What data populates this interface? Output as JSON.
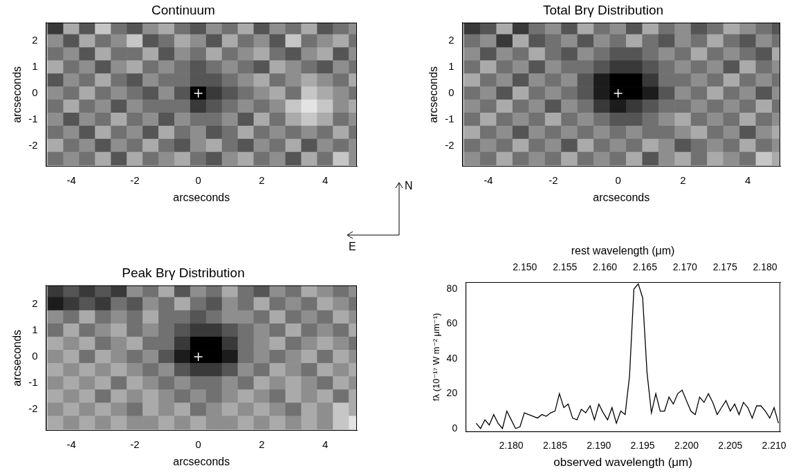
{
  "chart_data": [
    {
      "type": "heatmap",
      "title": "Continuum",
      "xlabel": "arcseconds",
      "ylabel": "arcseconds",
      "xlim": [
        -4.8,
        5
      ],
      "xticks": [
        -4,
        -2,
        0,
        2,
        4
      ],
      "ylim": [
        -2.8,
        2.7
      ],
      "yticks": [
        -2,
        -1,
        0,
        1,
        2
      ],
      "grid": false,
      "x": [
        -4.5,
        -4,
        -3.5,
        -3,
        -2.5,
        -2,
        -1.5,
        -1,
        -0.5,
        0,
        0.5,
        1,
        1.5,
        2,
        2.5,
        3,
        3.5,
        4,
        4.5,
        5
      ],
      "y": [
        2.5,
        2,
        1.5,
        1,
        0.5,
        0,
        -0.5,
        -1,
        -1.5,
        -2,
        -2.5
      ],
      "zlim": [
        0,
        9
      ],
      "cells": [
        [
          7,
          3,
          6,
          2,
          5,
          6,
          4,
          3,
          5,
          6,
          4,
          5,
          3,
          6,
          4,
          5,
          3,
          6,
          5,
          4
        ],
        [
          4,
          6,
          3,
          5,
          4,
          2,
          6,
          5,
          3,
          4,
          6,
          3,
          5,
          4,
          6,
          2,
          5,
          4,
          3,
          5
        ],
        [
          5,
          4,
          6,
          3,
          5,
          5,
          3,
          6,
          4,
          5,
          3,
          5,
          4,
          3,
          5,
          6,
          4,
          3,
          6,
          4
        ],
        [
          3,
          5,
          4,
          6,
          4,
          3,
          5,
          4,
          5,
          6,
          5,
          4,
          5,
          6,
          3,
          4,
          5,
          6,
          4,
          5
        ],
        [
          6,
          4,
          5,
          3,
          5,
          6,
          4,
          5,
          5,
          6,
          6,
          5,
          4,
          3,
          5,
          4,
          3,
          4,
          5,
          3
        ],
        [
          4,
          5,
          3,
          5,
          4,
          5,
          6,
          4,
          6,
          9,
          7,
          6,
          5,
          4,
          3,
          5,
          2,
          3,
          4,
          5
        ],
        [
          5,
          3,
          5,
          4,
          6,
          4,
          5,
          5,
          5,
          7,
          6,
          5,
          4,
          5,
          4,
          2,
          1,
          2,
          4,
          3
        ],
        [
          4,
          6,
          4,
          5,
          3,
          5,
          4,
          6,
          4,
          5,
          5,
          4,
          6,
          3,
          5,
          3,
          2,
          3,
          5,
          4
        ],
        [
          5,
          4,
          6,
          3,
          5,
          4,
          6,
          3,
          5,
          4,
          6,
          5,
          3,
          5,
          4,
          5,
          4,
          5,
          3,
          5
        ],
        [
          3,
          5,
          4,
          6,
          4,
          5,
          3,
          5,
          6,
          4,
          3,
          5,
          6,
          4,
          5,
          3,
          6,
          4,
          5,
          4
        ],
        [
          5,
          4,
          5,
          3,
          6,
          3,
          5,
          4,
          3,
          5,
          6,
          4,
          3,
          5,
          4,
          6,
          3,
          5,
          2,
          4
        ]
      ],
      "points": {
        "x": [
          0
        ],
        "y": [
          0
        ],
        "marker": "cross",
        "color": "#ffffff"
      }
    },
    {
      "type": "heatmap",
      "title": "Total Brγ Distribution",
      "xlabel": "arcseconds",
      "ylabel": "arcseconds",
      "xlim": [
        -4.8,
        5
      ],
      "xticks": [
        -4,
        -2,
        0,
        2,
        4
      ],
      "ylim": [
        -2.8,
        2.7
      ],
      "yticks": [
        -2,
        -1,
        0,
        1,
        2
      ],
      "grid": false,
      "x": [
        -4.5,
        -4,
        -3.5,
        -3,
        -2.5,
        -2,
        -1.5,
        -1,
        -0.5,
        0,
        0.5,
        1,
        1.5,
        2,
        2.5,
        3,
        3.5,
        4,
        4.5,
        5
      ],
      "y": [
        2.5,
        2,
        1.5,
        1,
        0.5,
        0,
        -0.5,
        -1,
        -1.5,
        -2,
        -2.5
      ],
      "zlim": [
        0,
        9
      ],
      "cells": [
        [
          7,
          6,
          3,
          7,
          5,
          4,
          6,
          3,
          5,
          4,
          6,
          3,
          5,
          4,
          6,
          5,
          3,
          4,
          5,
          6
        ],
        [
          5,
          4,
          7,
          3,
          6,
          5,
          4,
          6,
          4,
          5,
          3,
          5,
          6,
          4,
          5,
          3,
          5,
          6,
          4,
          5
        ],
        [
          4,
          6,
          4,
          5,
          3,
          5,
          6,
          4,
          5,
          6,
          6,
          5,
          4,
          5,
          3,
          5,
          4,
          5,
          6,
          3
        ],
        [
          5,
          3,
          5,
          4,
          6,
          4,
          5,
          5,
          6,
          7,
          7,
          6,
          5,
          4,
          5,
          4,
          6,
          3,
          5,
          4
        ],
        [
          3,
          5,
          4,
          6,
          4,
          5,
          4,
          6,
          8,
          9,
          9,
          7,
          5,
          5,
          4,
          5,
          3,
          5,
          4,
          5
        ],
        [
          5,
          4,
          6,
          3,
          5,
          4,
          5,
          6,
          8,
          9,
          9,
          8,
          6,
          4,
          5,
          3,
          5,
          4,
          6,
          4
        ],
        [
          4,
          5,
          3,
          5,
          4,
          6,
          4,
          5,
          7,
          8,
          7,
          6,
          5,
          5,
          4,
          5,
          4,
          5,
          3,
          5
        ],
        [
          5,
          3,
          5,
          4,
          5,
          3,
          5,
          4,
          5,
          6,
          6,
          5,
          4,
          3,
          5,
          4,
          5,
          3,
          5,
          4
        ],
        [
          3,
          5,
          4,
          6,
          4,
          5,
          4,
          5,
          4,
          5,
          4,
          5,
          5,
          4,
          3,
          5,
          4,
          6,
          4,
          3
        ],
        [
          5,
          4,
          5,
          3,
          5,
          4,
          6,
          3,
          5,
          4,
          5,
          3,
          4,
          6,
          5,
          4,
          5,
          3,
          5,
          4
        ],
        [
          4,
          5,
          3,
          5,
          4,
          5,
          3,
          5,
          4,
          5,
          3,
          6,
          4,
          3,
          5,
          3,
          4,
          5,
          2,
          3
        ]
      ],
      "points": {
        "x": [
          0
        ],
        "y": [
          0
        ],
        "marker": "cross",
        "color": "#ffffff"
      }
    },
    {
      "type": "heatmap",
      "title": "Peak Brγ Distribution",
      "xlabel": "arcseconds",
      "ylabel": "arcseconds",
      "xlim": [
        -4.8,
        5
      ],
      "xticks": [
        -4,
        -2,
        0,
        2,
        4
      ],
      "ylim": [
        -2.8,
        2.7
      ],
      "yticks": [
        -2,
        -1,
        0,
        1,
        2
      ],
      "grid": false,
      "x": [
        -4.5,
        -4,
        -3.5,
        -3,
        -2.5,
        -2,
        -1.5,
        -1,
        -0.5,
        0,
        0.5,
        1,
        1.5,
        2,
        2.5,
        3,
        3.5,
        4,
        4.5,
        5
      ],
      "y": [
        2.5,
        2,
        1.5,
        1,
        0.5,
        0,
        -0.5,
        -1,
        -1.5,
        -2,
        -2.5
      ],
      "zlim": [
        0,
        9
      ],
      "cells": [
        [
          7,
          6,
          7,
          6,
          7,
          4,
          5,
          3,
          6,
          4,
          5,
          3,
          5,
          6,
          4,
          5,
          3,
          4,
          5,
          4
        ],
        [
          8,
          7,
          6,
          7,
          5,
          6,
          4,
          5,
          3,
          5,
          6,
          4,
          5,
          3,
          5,
          4,
          5,
          3,
          4,
          5
        ],
        [
          4,
          5,
          3,
          5,
          4,
          5,
          3,
          5,
          5,
          6,
          5,
          4,
          4,
          5,
          3,
          5,
          4,
          5,
          3,
          4
        ],
        [
          5,
          3,
          5,
          4,
          3,
          5,
          4,
          5,
          6,
          7,
          7,
          6,
          5,
          4,
          5,
          3,
          5,
          4,
          5,
          3
        ],
        [
          3,
          4,
          3,
          5,
          4,
          3,
          5,
          5,
          7,
          9,
          9,
          7,
          5,
          4,
          3,
          5,
          4,
          3,
          4,
          5
        ],
        [
          4,
          3,
          5,
          3,
          4,
          5,
          4,
          6,
          8,
          9,
          9,
          8,
          5,
          4,
          5,
          4,
          3,
          5,
          3,
          4
        ],
        [
          3,
          4,
          3,
          4,
          3,
          4,
          5,
          4,
          6,
          7,
          7,
          6,
          4,
          5,
          3,
          4,
          5,
          3,
          4,
          3
        ],
        [
          4,
          3,
          4,
          3,
          5,
          3,
          4,
          5,
          4,
          5,
          5,
          4,
          5,
          3,
          4,
          3,
          4,
          5,
          3,
          4
        ],
        [
          3,
          4,
          3,
          5,
          3,
          4,
          3,
          4,
          5,
          4,
          5,
          4,
          3,
          4,
          5,
          3,
          4,
          3,
          5,
          3
        ],
        [
          4,
          3,
          4,
          3,
          4,
          5,
          3,
          4,
          3,
          5,
          4,
          3,
          4,
          3,
          4,
          5,
          3,
          4,
          2,
          3
        ],
        [
          3,
          4,
          3,
          4,
          3,
          4,
          4,
          3,
          4,
          3,
          4,
          4,
          3,
          4,
          3,
          4,
          3,
          4,
          2,
          1
        ]
      ],
      "points": {
        "x": [
          0
        ],
        "y": [
          0
        ],
        "marker": "cross",
        "color": "#ffffff"
      }
    },
    {
      "type": "line",
      "xlabel": "observed wavelength (μm)",
      "x2label": "rest wavelength (μm)",
      "ylabel": "fλ (10⁻¹⁷ W m⁻² μm⁻¹)",
      "color": "#000000",
      "grid": false,
      "xlim": [
        2.1748,
        2.2107
      ],
      "xticks": [
        {
          "value": 2.18,
          "label": "2.180"
        },
        {
          "value": 2.185,
          "label": "2.185"
        },
        {
          "value": 2.19,
          "label": "2.190"
        },
        {
          "value": 2.195,
          "label": "2.195"
        },
        {
          "value": 2.2,
          "label": "2.200"
        },
        {
          "value": 2.205,
          "label": "2.205"
        },
        {
          "value": 2.21,
          "label": "2.210"
        }
      ],
      "x2lim": [
        2.1426,
        2.1819
      ],
      "x2ticks": [
        {
          "value": 2.15,
          "label": "2.150"
        },
        {
          "value": 2.155,
          "label": "2.155"
        },
        {
          "value": 2.16,
          "label": "2.160"
        },
        {
          "value": 2.165,
          "label": "2.165"
        },
        {
          "value": 2.17,
          "label": "2.170"
        },
        {
          "value": 2.175,
          "label": "2.175"
        },
        {
          "value": 2.18,
          "label": "2.180"
        }
      ],
      "ylim": [
        -2,
        84
      ],
      "yticks": [
        0,
        20,
        40,
        60,
        80
      ],
      "x": [
        2.176,
        2.1765,
        2.177,
        2.1775,
        2.178,
        2.1785,
        2.179,
        2.1795,
        2.18,
        2.1805,
        2.181,
        2.1815,
        2.182,
        2.1825,
        2.183,
        2.1835,
        2.184,
        2.1845,
        2.185,
        2.1855,
        2.186,
        2.1865,
        2.187,
        2.1875,
        2.188,
        2.1885,
        2.189,
        2.1895,
        2.19,
        2.1905,
        2.191,
        2.1915,
        2.192,
        2.1925,
        2.193,
        2.1935,
        2.194,
        2.1945,
        2.195,
        2.1955,
        2.196,
        2.1965,
        2.197,
        2.1975,
        2.198,
        2.1985,
        2.199,
        2.1995,
        2.2,
        2.2005,
        2.201,
        2.2015,
        2.202,
        2.2025,
        2.203,
        2.2035,
        2.204,
        2.2045,
        2.205,
        2.2055,
        2.206,
        2.2065,
        2.207,
        2.2075,
        2.208,
        2.2085,
        2.209,
        2.2095,
        2.21,
        2.2105
      ],
      "values": [
        3,
        0,
        5,
        2,
        8,
        3,
        0,
        10,
        5,
        0,
        1,
        9,
        8,
        7,
        6,
        8,
        7,
        9,
        10,
        20,
        12,
        14,
        6,
        5,
        11,
        9,
        13,
        5,
        14,
        9,
        5,
        12,
        3,
        10,
        8,
        30,
        80,
        83,
        75,
        32,
        9,
        20,
        10,
        10,
        18,
        14,
        20,
        22,
        16,
        10,
        8,
        18,
        15,
        20,
        15,
        8,
        12,
        16,
        10,
        14,
        8,
        15,
        12,
        6,
        13,
        13,
        10,
        6,
        12,
        3
      ]
    }
  ],
  "compass": {
    "north": "N",
    "east": "E"
  }
}
